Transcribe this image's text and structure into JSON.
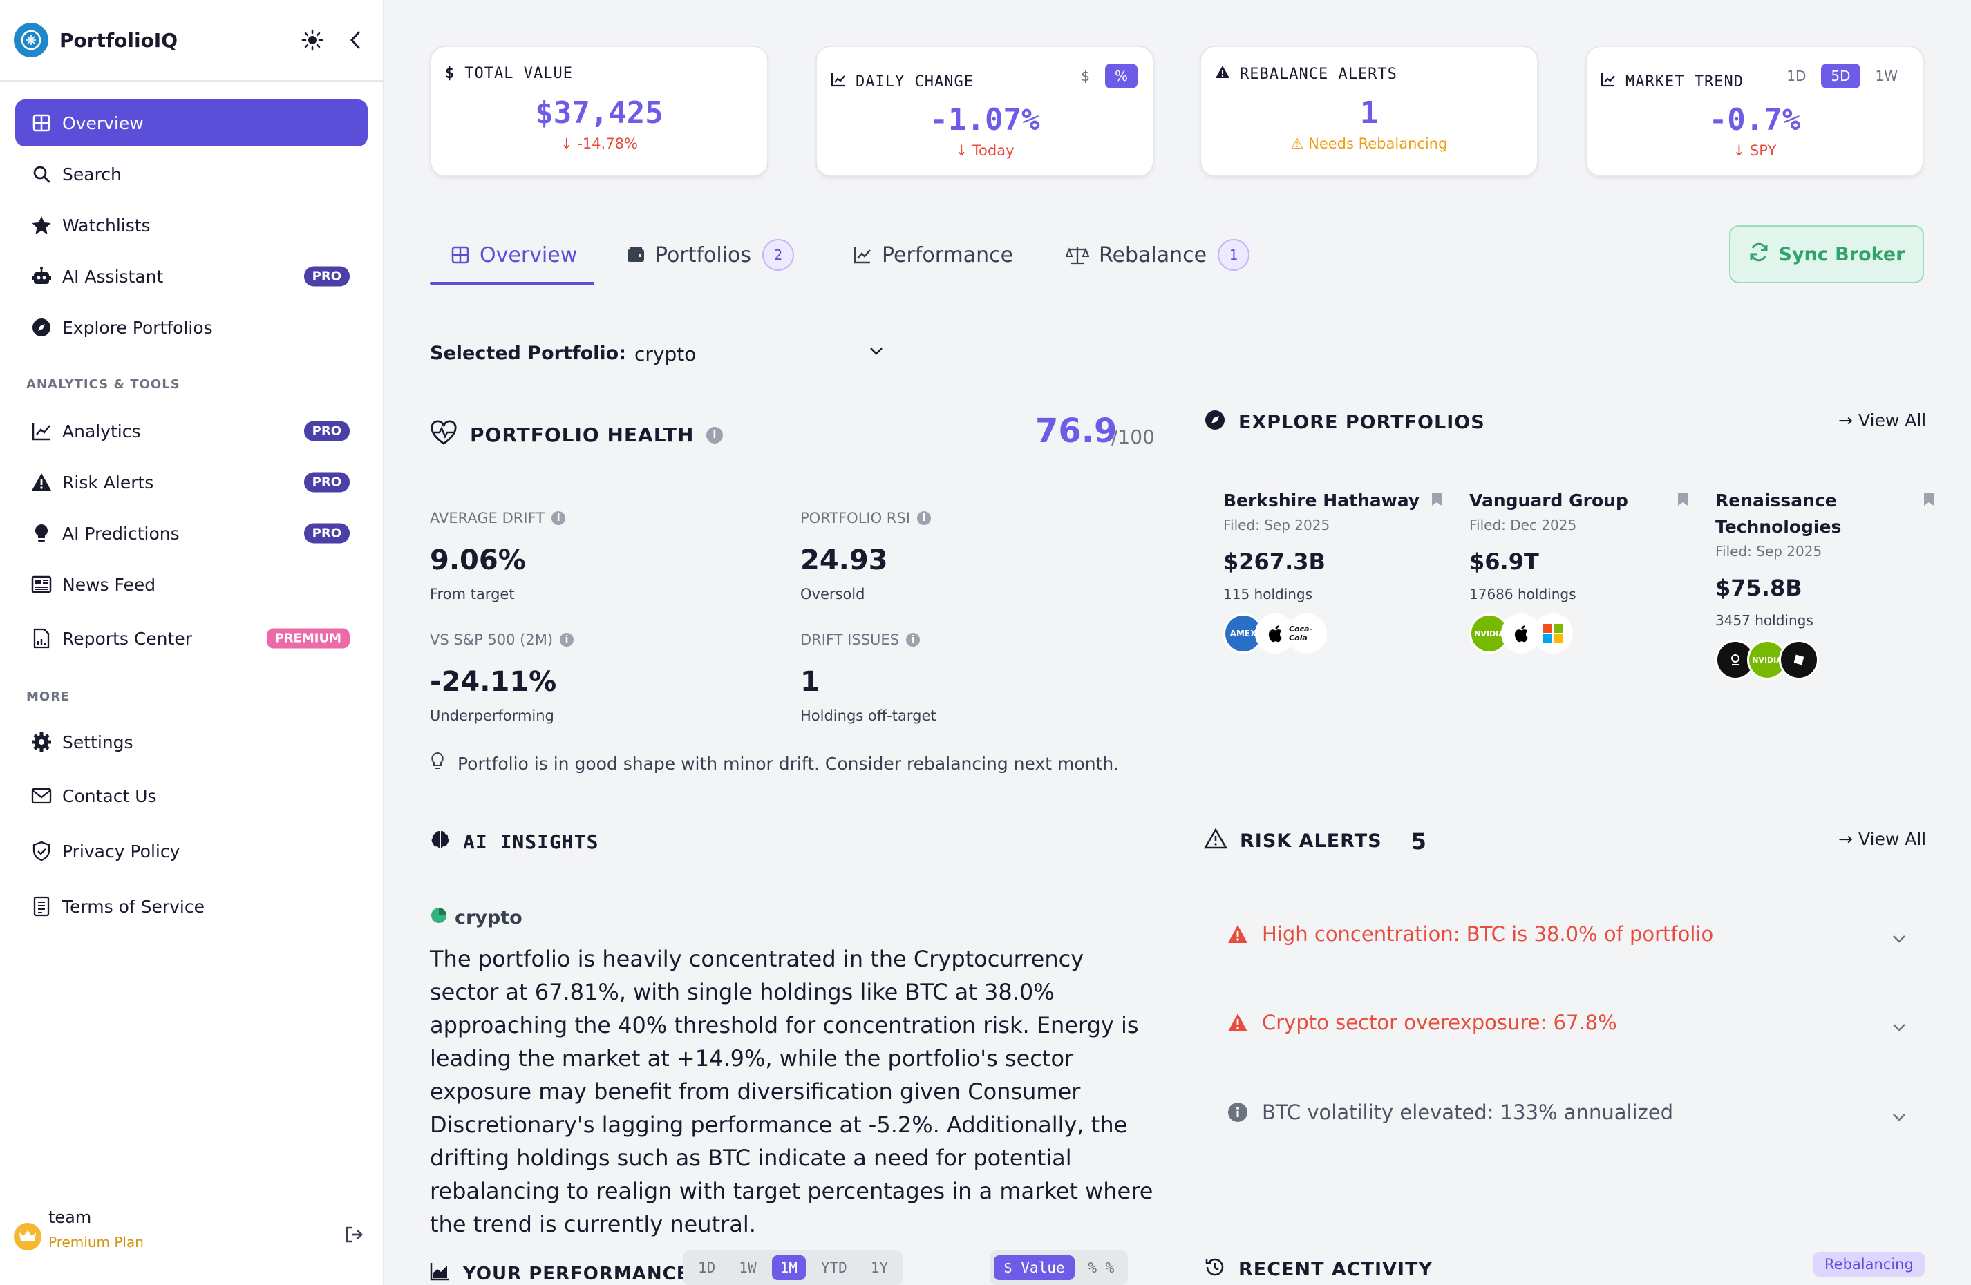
{
  "app": {
    "name": "PortfolioIQ"
  },
  "sidebar": {
    "main": [
      {
        "label": "Overview",
        "icon": "grid-icon",
        "active": true
      },
      {
        "label": "Search",
        "icon": "search-icon"
      },
      {
        "label": "Watchlists",
        "icon": "star-icon"
      },
      {
        "label": "AI Assistant",
        "icon": "robot-icon",
        "badge": "PRO"
      },
      {
        "label": "Explore Portfolios",
        "icon": "compass-icon"
      }
    ],
    "section_tools": "ANALYTICS & TOOLS",
    "tools": [
      {
        "label": "Analytics",
        "icon": "chart-line-icon",
        "badge": "PRO"
      },
      {
        "label": "Risk Alerts",
        "icon": "warning-icon",
        "badge": "PRO"
      },
      {
        "label": "AI Predictions",
        "icon": "lightbulb-icon",
        "badge": "PRO"
      },
      {
        "label": "News Feed",
        "icon": "newspaper-icon"
      },
      {
        "label": "Reports Center",
        "icon": "report-icon",
        "badge": "PREMIUM"
      }
    ],
    "section_more": "MORE",
    "more": [
      {
        "label": "Settings",
        "icon": "gear-icon"
      },
      {
        "label": "Contact Us",
        "icon": "mail-icon"
      },
      {
        "label": "Privacy Policy",
        "icon": "shield-icon"
      },
      {
        "label": "Terms of Service",
        "icon": "document-icon"
      }
    ],
    "user": {
      "name": "team",
      "plan": "Premium Plan"
    }
  },
  "cards": {
    "total": {
      "label": "TOTAL VALUE",
      "value": "$37,425",
      "sub": "-14.78%"
    },
    "daily": {
      "label": "DAILY CHANGE",
      "value": "-1.07%",
      "sub": "Today",
      "toggle": [
        "$",
        "%"
      ]
    },
    "rebalance": {
      "label": "REBALANCE ALERTS",
      "value": "1",
      "sub": "Needs Rebalancing"
    },
    "trend": {
      "label": "MARKET TREND",
      "value": "-0.7%",
      "sub": "SPY",
      "ranges": [
        "1D",
        "5D",
        "1W"
      ]
    }
  },
  "tabs": [
    {
      "label": "Overview",
      "active": true
    },
    {
      "label": "Portfolios",
      "count": "2"
    },
    {
      "label": "Performance"
    },
    {
      "label": "Rebalance",
      "count": "1"
    }
  ],
  "sync_label": "Sync Broker",
  "selector": {
    "label": "Selected Portfolio:",
    "value": "crypto"
  },
  "health": {
    "title": "PORTFOLIO HEALTH",
    "score": "76.9",
    "max": "/100",
    "metrics": [
      {
        "label": "AVERAGE DRIFT",
        "value": "9.06%",
        "sub": "From target"
      },
      {
        "label": "PORTFOLIO RSI",
        "value": "24.93",
        "sub": "Oversold"
      },
      {
        "label": "VS S&P 500 (2M)",
        "value": "-24.11%",
        "sub": "Underperforming"
      },
      {
        "label": "DRIFT ISSUES",
        "value": "1",
        "sub": "Holdings off-target"
      }
    ],
    "note": "Portfolio is in good shape with minor drift. Consider rebalancing next month."
  },
  "explore": {
    "title": "EXPLORE PORTFOLIOS",
    "view_all": "View All",
    "items": [
      {
        "name": "Berkshire Hathaway",
        "filed": "Filed: Sep 2025",
        "value": "$267.3B",
        "holdings": "115 holdings",
        "logos": [
          "AMEX",
          "",
          "Coca-Cola"
        ]
      },
      {
        "name": "Vanguard Group",
        "filed": "Filed: Dec 2025",
        "value": "$6.9T",
        "holdings": "17686 holdings",
        "logos": [
          "NVIDIA",
          "",
          ""
        ]
      },
      {
        "name": "Renaissance Technologies",
        "filed": "Filed: Sep 2025",
        "value": "$75.8B",
        "holdings": "3457 holdings",
        "logos": [
          "",
          "NVIDIA",
          ""
        ]
      }
    ]
  },
  "insights": {
    "title": "AI INSIGHTS",
    "tag": "crypto",
    "text": "The portfolio is heavily concentrated in the Cryptocurrency sector at 67.81%, with single holdings like BTC at 38.0% approaching the 40% threshold for concentration risk. Energy is leading the market at +14.9%, while the portfolio's sector exposure may benefit from diversification given Consumer Discretionary's lagging performance at -5.2%. Additionally, the drifting holdings such as BTC indicate a need for potential rebalancing to realign with target percentages in a market where the trend is currently neutral."
  },
  "risk": {
    "title": "RISK ALERTS",
    "count": "5",
    "view_all": "View All",
    "items": [
      {
        "text": "High concentration: BTC is 38.0% of portfolio",
        "level": "high"
      },
      {
        "text": "Crypto sector overexposure: 67.8%",
        "level": "high"
      },
      {
        "text": "BTC volatility elevated: 133% annualized",
        "level": "info"
      }
    ]
  },
  "performance": {
    "title": "YOUR PERFORMANCE",
    "ranges": [
      "1D",
      "1W",
      "1M",
      "YTD",
      "1Y"
    ],
    "active_range": "1M",
    "modes": [
      "$ Value",
      "% %"
    ]
  },
  "recent": {
    "title": "RECENT ACTIVITY",
    "badge": "Rebalancing"
  },
  "colors": {
    "accent": "#6c5ce7",
    "negative": "#e74c3c",
    "warning": "#f39c12",
    "success": "#2fa56b"
  }
}
